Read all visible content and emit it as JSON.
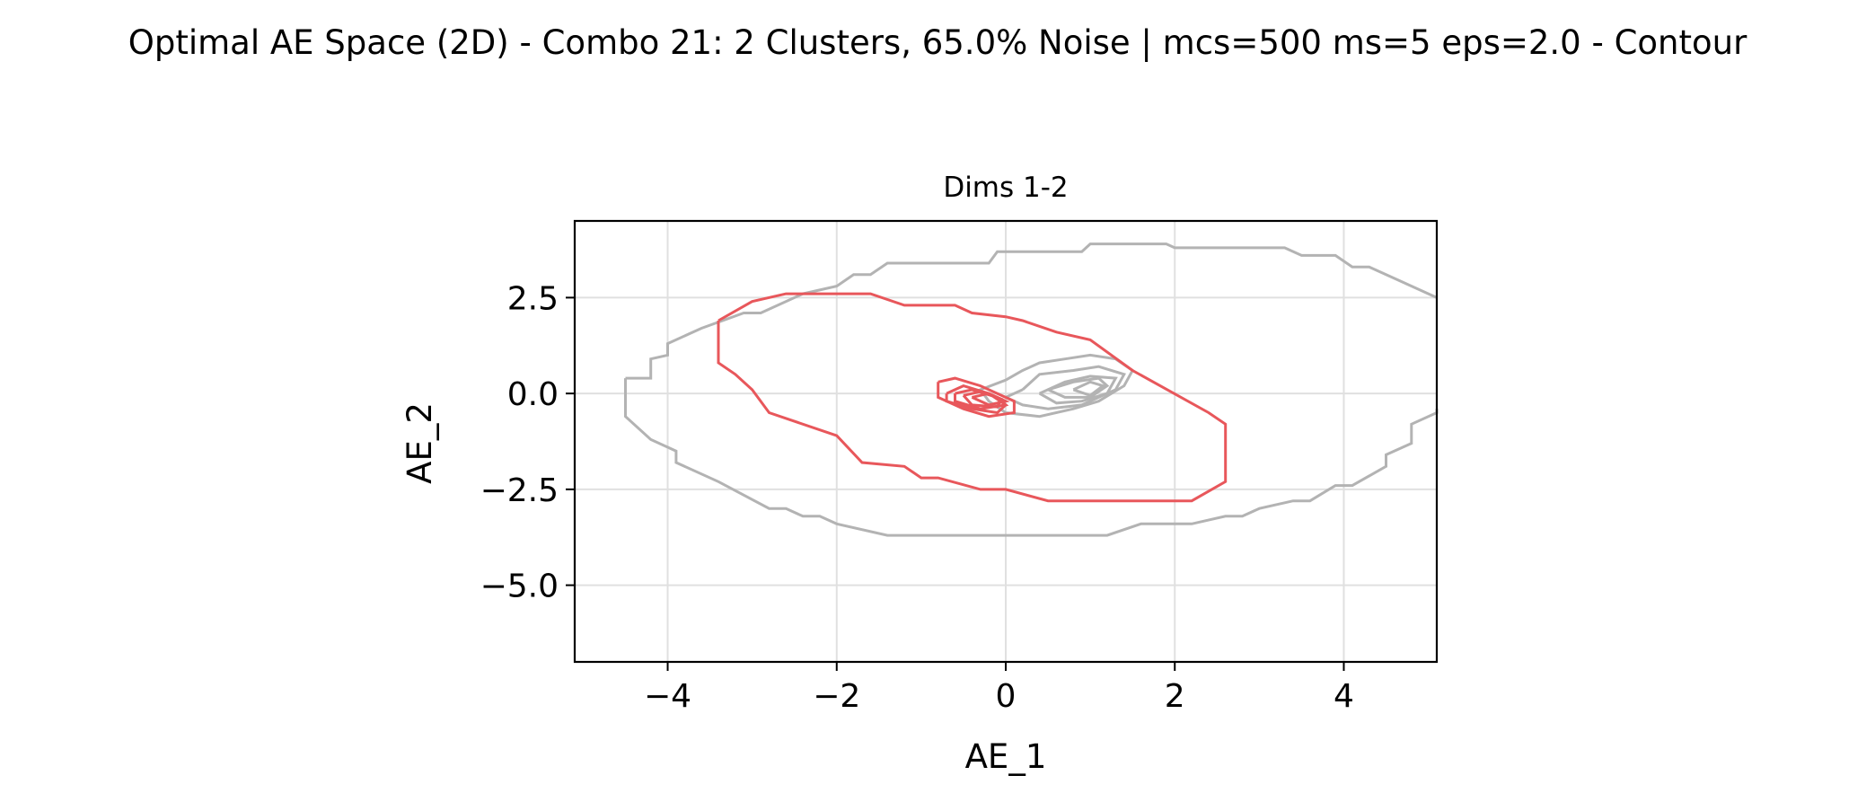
{
  "figure": {
    "suptitle": "Optimal AE Space (2D) - Combo 21: 2 Clusters, 65.0% Noise | mcs=500 ms=5 eps=2.0 - Contour"
  },
  "chart_data": {
    "type": "contour",
    "title": "Dims 1-2",
    "xlabel": "AE_1",
    "ylabel": "AE_2",
    "xlim": [
      -5.1,
      5.1
    ],
    "ylim": [
      -7.0,
      4.5
    ],
    "xticks": [
      -4,
      -2,
      0,
      2,
      4
    ],
    "xtick_labels": [
      "−4",
      "−2",
      "0",
      "2",
      "4"
    ],
    "yticks": [
      2.5,
      0.0,
      -2.5,
      -5.0
    ],
    "ytick_labels": [
      "2.5",
      "0.0",
      "−2.5",
      "−5.0"
    ],
    "grid": true,
    "colors": {
      "noise": "#b3b3b3",
      "cluster": "#e8575b",
      "grid": "#e0e0e0",
      "axes": "#000000"
    },
    "series": [
      {
        "group": "noise",
        "levels": [
          [
            [
              -4.5,
              0.4
            ],
            [
              -4.5,
              -0.6
            ],
            [
              -4.2,
              -1.2
            ],
            [
              -3.9,
              -1.5
            ],
            [
              -3.9,
              -1.8
            ],
            [
              -3.4,
              -2.3
            ],
            [
              -2.8,
              -3.0
            ],
            [
              -2.6,
              -3.0
            ],
            [
              -2.4,
              -3.2
            ],
            [
              -2.2,
              -3.2
            ],
            [
              -2.0,
              -3.4
            ],
            [
              -1.4,
              -3.7
            ],
            [
              1.2,
              -3.7
            ],
            [
              1.6,
              -3.4
            ],
            [
              2.2,
              -3.4
            ],
            [
              2.6,
              -3.2
            ],
            [
              2.8,
              -3.2
            ],
            [
              3.0,
              -3.0
            ],
            [
              3.4,
              -2.8
            ],
            [
              3.6,
              -2.8
            ],
            [
              3.9,
              -2.4
            ],
            [
              4.1,
              -2.4
            ],
            [
              4.5,
              -1.9
            ],
            [
              4.5,
              -1.6
            ],
            [
              4.8,
              -1.3
            ],
            [
              4.8,
              -0.8
            ],
            [
              5.1,
              -0.5
            ],
            [
              5.1,
              -0.4
            ]
          ],
          [
            [
              -4.5,
              0.4
            ],
            [
              -4.2,
              0.4
            ],
            [
              -4.2,
              0.9
            ],
            [
              -4.0,
              1.0
            ],
            [
              -4.0,
              1.3
            ],
            [
              -3.6,
              1.7
            ],
            [
              -3.1,
              2.1
            ],
            [
              -2.9,
              2.1
            ],
            [
              -2.4,
              2.6
            ],
            [
              -2.0,
              2.8
            ],
            [
              -1.8,
              3.1
            ],
            [
              -1.6,
              3.1
            ],
            [
              -1.4,
              3.4
            ],
            [
              -0.2,
              3.4
            ],
            [
              -0.1,
              3.7
            ],
            [
              0.9,
              3.7
            ],
            [
              1.0,
              3.9
            ],
            [
              1.9,
              3.9
            ],
            [
              2.0,
              3.8
            ],
            [
              3.3,
              3.8
            ],
            [
              3.5,
              3.6
            ],
            [
              3.9,
              3.6
            ],
            [
              4.1,
              3.3
            ],
            [
              4.3,
              3.3
            ],
            [
              4.6,
              3.0
            ],
            [
              5.1,
              2.5
            ]
          ],
          [
            [
              0.0,
              0.35
            ],
            [
              0.2,
              0.6
            ],
            [
              0.4,
              0.8
            ],
            [
              0.7,
              0.9
            ],
            [
              1.0,
              1.0
            ],
            [
              1.3,
              0.9
            ],
            [
              1.5,
              0.6
            ],
            [
              1.4,
              0.2
            ],
            [
              1.1,
              -0.2
            ],
            [
              0.8,
              -0.4
            ],
            [
              0.4,
              -0.6
            ],
            [
              0.0,
              -0.5
            ],
            [
              -0.2,
              -0.2
            ],
            [
              -0.3,
              0.1
            ],
            [
              0.0,
              0.35
            ]
          ],
          [
            [
              0.2,
              0.1
            ],
            [
              0.4,
              0.5
            ],
            [
              0.8,
              0.6
            ],
            [
              1.1,
              0.7
            ],
            [
              1.4,
              0.5
            ],
            [
              1.3,
              0.1
            ],
            [
              0.9,
              -0.3
            ],
            [
              0.5,
              -0.4
            ],
            [
              0.2,
              -0.3
            ],
            [
              0.0,
              -0.1
            ],
            [
              0.2,
              0.1
            ]
          ],
          [
            [
              0.4,
              0.0
            ],
            [
              0.7,
              0.3
            ],
            [
              1.0,
              0.45
            ],
            [
              1.3,
              0.4
            ],
            [
              1.2,
              0.0
            ],
            [
              0.9,
              -0.2
            ],
            [
              0.6,
              -0.25
            ],
            [
              0.4,
              0.0
            ]
          ],
          [
            [
              0.5,
              0.1
            ],
            [
              0.8,
              0.3
            ],
            [
              1.1,
              0.4
            ],
            [
              1.2,
              0.2
            ],
            [
              1.0,
              -0.1
            ],
            [
              0.7,
              -0.1
            ],
            [
              0.5,
              0.1
            ]
          ],
          [
            [
              0.8,
              0.1
            ],
            [
              1.0,
              0.3
            ],
            [
              1.15,
              0.2
            ],
            [
              1.0,
              -0.05
            ],
            [
              0.8,
              0.1
            ]
          ]
        ]
      },
      {
        "group": "cluster",
        "levels": [
          [
            [
              -3.4,
              1.9
            ],
            [
              -3.0,
              2.4
            ],
            [
              -2.6,
              2.6
            ],
            [
              -1.6,
              2.6
            ],
            [
              -1.2,
              2.3
            ],
            [
              -0.6,
              2.3
            ],
            [
              -0.4,
              2.1
            ],
            [
              0.0,
              2.0
            ],
            [
              0.2,
              1.9
            ],
            [
              0.6,
              1.6
            ],
            [
              1.0,
              1.4
            ],
            [
              1.5,
              0.6
            ],
            [
              2.4,
              -0.5
            ],
            [
              2.6,
              -0.8
            ],
            [
              2.6,
              -2.3
            ],
            [
              2.2,
              -2.8
            ],
            [
              0.5,
              -2.8
            ],
            [
              0.0,
              -2.5
            ],
            [
              -0.3,
              -2.5
            ],
            [
              -0.8,
              -2.2
            ],
            [
              -1.0,
              -2.2
            ],
            [
              -1.2,
              -1.9
            ],
            [
              -1.7,
              -1.8
            ],
            [
              -2.0,
              -1.1
            ],
            [
              -2.8,
              -0.5
            ],
            [
              -3.0,
              0.1
            ],
            [
              -3.2,
              0.5
            ],
            [
              -3.4,
              0.8
            ],
            [
              -3.4,
              1.9
            ]
          ],
          [
            [
              -0.8,
              0.3
            ],
            [
              -0.6,
              0.4
            ],
            [
              -0.3,
              0.2
            ],
            [
              0.1,
              -0.2
            ],
            [
              0.1,
              -0.5
            ],
            [
              -0.2,
              -0.6
            ],
            [
              -0.5,
              -0.4
            ],
            [
              -0.8,
              -0.1
            ],
            [
              -0.8,
              0.3
            ]
          ],
          [
            [
              -0.7,
              0.0
            ],
            [
              -0.5,
              0.2
            ],
            [
              -0.2,
              0.0
            ],
            [
              0.0,
              -0.3
            ],
            [
              -0.1,
              -0.5
            ],
            [
              -0.4,
              -0.4
            ],
            [
              -0.7,
              -0.2
            ],
            [
              -0.7,
              0.0
            ]
          ],
          [
            [
              -0.6,
              0.0
            ],
            [
              -0.4,
              0.1
            ],
            [
              -0.1,
              -0.1
            ],
            [
              0.0,
              -0.3
            ],
            [
              -0.3,
              -0.4
            ],
            [
              -0.6,
              -0.2
            ],
            [
              -0.6,
              0.0
            ]
          ],
          [
            [
              -0.5,
              -0.05
            ],
            [
              -0.3,
              0.05
            ],
            [
              -0.05,
              -0.15
            ],
            [
              -0.1,
              -0.35
            ],
            [
              -0.4,
              -0.3
            ],
            [
              -0.5,
              -0.05
            ]
          ],
          [
            [
              -0.4,
              -0.1
            ],
            [
              -0.2,
              0.0
            ],
            [
              0.0,
              -0.2
            ],
            [
              -0.2,
              -0.3
            ],
            [
              -0.4,
              -0.1
            ]
          ]
        ]
      }
    ]
  }
}
